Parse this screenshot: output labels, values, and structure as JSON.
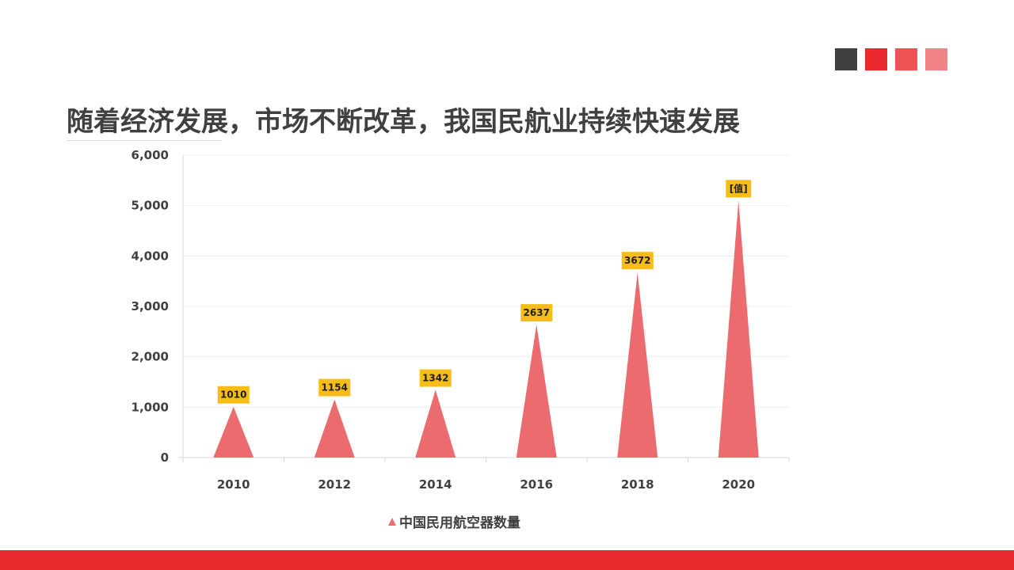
{
  "header": {
    "title": "随着经济发展，市场不断改革，我国民航业持续快速发展",
    "decor_squares": [
      "#404040",
      "#e8292e",
      "#ef5356",
      "#f28386"
    ]
  },
  "colors": {
    "accent": "#e8292e",
    "series": "#ec6b6e",
    "label_bg": "#f6bd18",
    "text": "#404040"
  },
  "chart_data": {
    "type": "bar",
    "bar_shape": "triangle",
    "categories": [
      "2010",
      "2012",
      "2014",
      "2016",
      "2018",
      "2020"
    ],
    "series": [
      {
        "name": "中国民用航空器数量",
        "values": [
          1010,
          1154,
          1342,
          2637,
          3672,
          5100
        ],
        "data_labels": [
          "1010",
          "1154",
          "1342",
          "2637",
          "3672",
          "[值]"
        ]
      }
    ],
    "ylim": [
      0,
      6000
    ],
    "yticks": [
      0,
      1000,
      2000,
      3000,
      4000,
      5000,
      6000
    ],
    "ytick_labels": [
      "0",
      "1,000",
      "2,000",
      "3,000",
      "4,000",
      "5,000",
      "6,000"
    ],
    "grid": true,
    "legend_position": "bottom"
  }
}
